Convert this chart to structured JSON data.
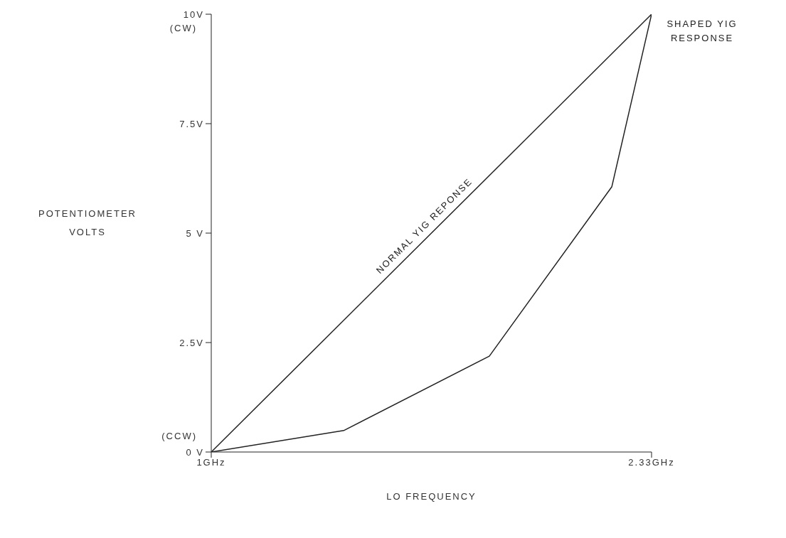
{
  "chart_data": {
    "type": "line",
    "xlabel": "LO FREQUENCY",
    "ylabel": "POTENTIOMETER VOLTS",
    "xlim": [
      1,
      2.33
    ],
    "xticks": [
      {
        "value": 1,
        "label": "1GHz"
      },
      {
        "value": 2.33,
        "label": "2.33GHz"
      }
    ],
    "ylim": [
      0,
      10
    ],
    "yticks": [
      {
        "value": 0,
        "label": "0 V"
      },
      {
        "value": 2.5,
        "label": "2.5V"
      },
      {
        "value": 5,
        "label": "5 V"
      },
      {
        "value": 7.5,
        "label": "7.5V"
      },
      {
        "value": 10,
        "label": "10V"
      }
    ],
    "series": [
      {
        "name": "NORMAL YIG REPONSE",
        "color": "#222222",
        "x": [
          1,
          2.33
        ],
        "values": [
          0,
          10
        ]
      },
      {
        "name": "SHAPED YIG RESPONSE",
        "color": "#222222",
        "x": [
          1,
          1.4,
          1.84,
          2.21,
          2.33
        ],
        "values": [
          0,
          0.49,
          2.19,
          6.06,
          10
        ]
      }
    ],
    "annotations": [
      "(CW)",
      "(CCW)"
    ],
    "grid": false,
    "legend": false,
    "marker": "none",
    "line_style": "solid"
  }
}
